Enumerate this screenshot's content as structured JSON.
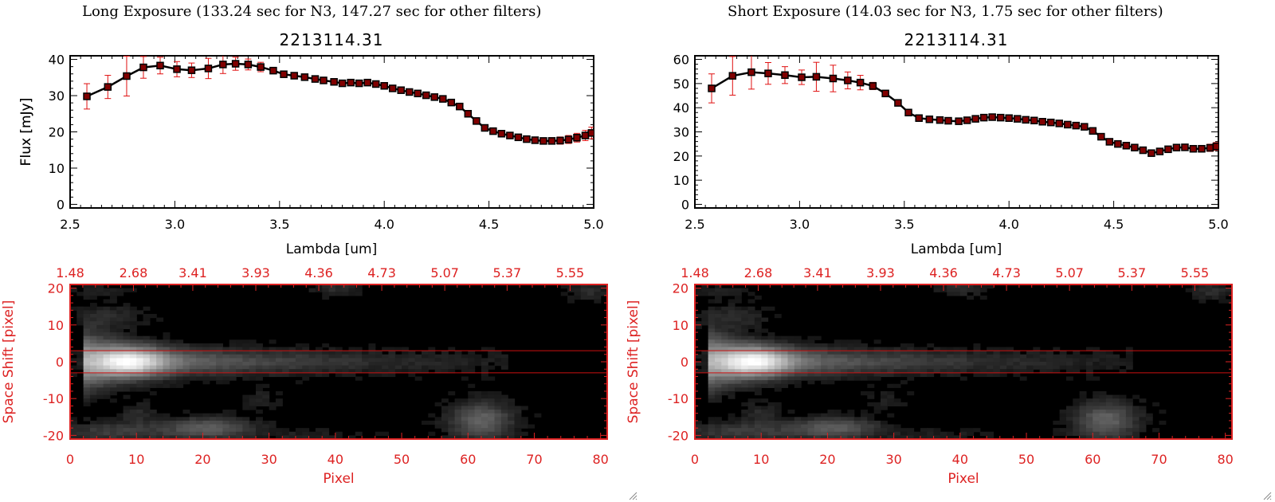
{
  "panels": [
    {
      "id": "long",
      "header": "Long Exposure (133.24 sec for N3, 147.27 sec for other filters)",
      "chart_data": [
        {
          "type": "line",
          "title": "2213114.31",
          "xlabel": "Lambda [um]",
          "ylabel": "Flux [mJy]",
          "xlim": [
            2.5,
            5.0
          ],
          "ylim": [
            -1,
            41
          ],
          "x_ticks": [
            2.5,
            3.0,
            3.5,
            4.0,
            4.5,
            5.0
          ],
          "x_tick_labels": [
            "2.5",
            "3.0",
            "3.5",
            "4.0",
            "4.5",
            "5.0"
          ],
          "y_ticks": [
            0,
            10,
            20,
            30,
            40
          ],
          "y_tick_labels": [
            "0",
            "10",
            "20",
            "30",
            "40"
          ],
          "grid": false,
          "series": [
            {
              "x": [
                2.58,
                2.68,
                2.77,
                2.85,
                2.93,
                3.01,
                3.08,
                3.16,
                3.23,
                3.29,
                3.35,
                3.41,
                3.47,
                3.52,
                3.57,
                3.62,
                3.67,
                3.71,
                3.76,
                3.8,
                3.84,
                3.88,
                3.92,
                3.96,
                4.0,
                4.04,
                4.08,
                4.12,
                4.16,
                4.2,
                4.24,
                4.28,
                4.32,
                4.36,
                4.4,
                4.44,
                4.48,
                4.52,
                4.56,
                4.6,
                4.64,
                4.68,
                4.72,
                4.76,
                4.8,
                4.84,
                4.88,
                4.92,
                4.96,
                4.99
              ],
              "y": [
                29.8,
                32.4,
                35.4,
                37.8,
                38.3,
                37.3,
                37.0,
                37.5,
                38.6,
                38.8,
                38.6,
                37.9,
                36.9,
                35.9,
                35.5,
                35.1,
                34.6,
                34.2,
                33.8,
                33.4,
                33.6,
                33.4,
                33.6,
                33.2,
                32.7,
                32.0,
                31.5,
                31.0,
                30.6,
                30.1,
                29.6,
                29.1,
                28.1,
                27.0,
                25.0,
                23.0,
                21.1,
                20.2,
                19.5,
                19.0,
                18.5,
                18.0,
                17.7,
                17.5,
                17.5,
                17.6,
                17.9,
                18.4,
                19.0,
                19.7
              ],
              "yerr": [
                3.5,
                3.2,
                5.5,
                3.0,
                2.3,
                2.1,
                2.0,
                2.8,
                2.5,
                1.8,
                1.5,
                1.3,
                0.7,
                0.6,
                0.6,
                0.5,
                0.5,
                0.5,
                0.5,
                0.5,
                0.5,
                0.5,
                0.5,
                0.5,
                0.5,
                0.5,
                0.5,
                0.5,
                0.5,
                0.5,
                0.6,
                0.6,
                0.6,
                0.7,
                0.7,
                0.7,
                0.7,
                0.7,
                0.7,
                0.7,
                0.7,
                0.7,
                0.8,
                0.8,
                0.9,
                1.0,
                1.1,
                1.2,
                1.4,
                1.6
              ]
            }
          ]
        },
        {
          "type": "heatmap",
          "xlabel": "Pixel",
          "ylabel": "Space Shift [pixel]",
          "xlim": [
            0,
            81
          ],
          "ylim": [
            -21,
            21
          ],
          "x_ticks": [
            0,
            10,
            20,
            30,
            40,
            50,
            60,
            70,
            80
          ],
          "x_tick_labels": [
            "0",
            "10",
            "20",
            "30",
            "40",
            "50",
            "60",
            "70",
            "80"
          ],
          "y_ticks": [
            -20,
            -10,
            0,
            10,
            20
          ],
          "y_tick_labels": [
            "-20",
            "-10",
            "0",
            "10",
            "20"
          ],
          "top_axis_ticks": [
            0,
            9.55,
            18.5,
            28,
            37.5,
            47,
            56.5,
            65.9,
            75.4
          ],
          "top_axis_labels": [
            "1.48",
            "2.68",
            "3.41",
            "3.93",
            "4.36",
            "4.73",
            "5.07",
            "5.37",
            "5.55"
          ],
          "aperture_lines": [
            3,
            -3
          ]
        }
      ]
    },
    {
      "id": "short",
      "header": "Short Exposure (14.03 sec for N3, 1.75 sec for other filters)",
      "chart_data": [
        {
          "type": "line",
          "title": "2213114.31",
          "xlabel": "Lambda [um]",
          "ylabel": "Flux [mJy]",
          "xlim": [
            2.5,
            5.0
          ],
          "ylim": [
            -1.5,
            61.5
          ],
          "x_ticks": [
            2.5,
            3.0,
            3.5,
            4.0,
            4.5,
            5.0
          ],
          "x_tick_labels": [
            "2.5",
            "3.0",
            "3.5",
            "4.0",
            "4.5",
            "5.0"
          ],
          "y_ticks": [
            0,
            10,
            20,
            30,
            40,
            50,
            60
          ],
          "y_tick_labels": [
            "0",
            "10",
            "20",
            "30",
            "40",
            "50",
            "60"
          ],
          "grid": false,
          "series": [
            {
              "x": [
                2.58,
                2.68,
                2.77,
                2.85,
                2.93,
                3.01,
                3.08,
                3.16,
                3.23,
                3.29,
                3.35,
                3.41,
                3.47,
                3.52,
                3.57,
                3.62,
                3.67,
                3.71,
                3.76,
                3.8,
                3.84,
                3.88,
                3.92,
                3.96,
                4.0,
                4.04,
                4.08,
                4.12,
                4.16,
                4.2,
                4.24,
                4.28,
                4.32,
                4.36,
                4.4,
                4.44,
                4.48,
                4.52,
                4.56,
                4.6,
                4.64,
                4.68,
                4.72,
                4.76,
                4.8,
                4.84,
                4.88,
                4.92,
                4.96,
                4.99
              ],
              "y": [
                48.0,
                53.2,
                54.7,
                54.2,
                53.5,
                52.6,
                52.8,
                52.1,
                51.3,
                50.4,
                49.0,
                45.9,
                42.0,
                38.0,
                35.7,
                35.2,
                34.9,
                34.6,
                34.4,
                34.8,
                35.4,
                35.9,
                36.1,
                35.9,
                35.7,
                35.4,
                35.0,
                34.7,
                34.2,
                33.9,
                33.5,
                33.0,
                32.6,
                32.1,
                30.4,
                28.0,
                25.9,
                25.0,
                24.3,
                23.5,
                22.4,
                21.2,
                21.9,
                22.8,
                23.5,
                23.6,
                23.0,
                23.0,
                23.4,
                24.0
              ],
              "yerr": [
                6.0,
                8.0,
                7.0,
                4.5,
                3.5,
                3.0,
                6.0,
                5.5,
                3.5,
                3.0,
                1.5,
                1.2,
                1.0,
                0.8,
                0.8,
                0.7,
                0.7,
                0.7,
                0.7,
                0.7,
                0.7,
                0.7,
                0.7,
                0.7,
                0.7,
                0.7,
                0.7,
                0.7,
                0.7,
                0.7,
                0.7,
                0.7,
                0.7,
                0.8,
                0.9,
                0.9,
                0.9,
                0.9,
                1.0,
                1.0,
                1.0,
                1.0,
                1.1,
                1.1,
                1.2,
                1.2,
                1.3,
                1.4,
                1.5,
                1.6
              ]
            }
          ]
        },
        {
          "type": "heatmap",
          "xlabel": "Pixel",
          "ylabel": "Space Shift [pixel]",
          "xlim": [
            0,
            81
          ],
          "ylim": [
            -21,
            21
          ],
          "x_ticks": [
            0,
            10,
            20,
            30,
            40,
            50,
            60,
            70,
            80
          ],
          "x_tick_labels": [
            "0",
            "10",
            "20",
            "30",
            "40",
            "50",
            "60",
            "70",
            "80"
          ],
          "y_ticks": [
            -20,
            -10,
            0,
            10,
            20
          ],
          "y_tick_labels": [
            "-20",
            "-10",
            "0",
            "10",
            "20"
          ],
          "top_axis_ticks": [
            0,
            9.55,
            18.5,
            28,
            37.5,
            47,
            56.5,
            65.9,
            75.4
          ],
          "top_axis_labels": [
            "1.48",
            "2.68",
            "3.41",
            "3.93",
            "4.36",
            "4.73",
            "5.07",
            "5.37",
            "5.55"
          ],
          "aperture_lines": [
            3,
            -3
          ]
        }
      ]
    }
  ],
  "colors": {
    "spectrum_line": "#000000",
    "marker_fill": "#800000",
    "error_bar": "#e01010",
    "image_axes": "#dd2222",
    "aperture": "#cc1111"
  }
}
